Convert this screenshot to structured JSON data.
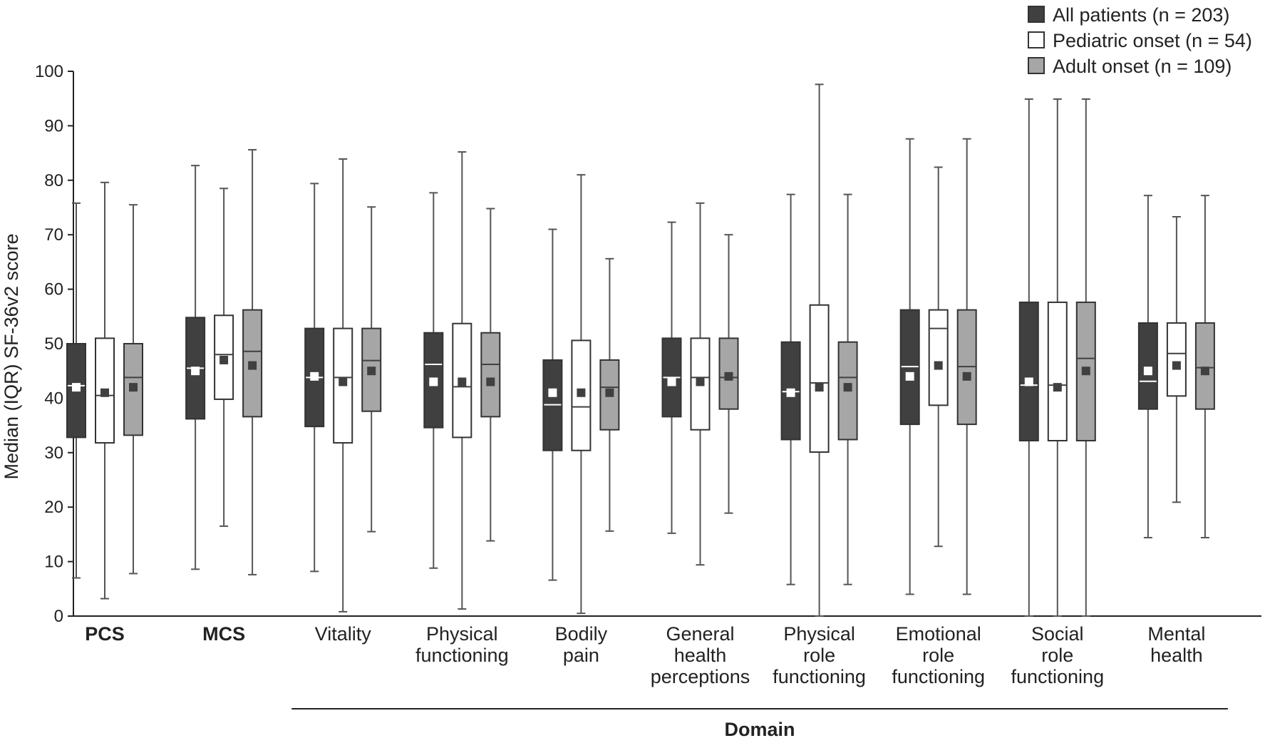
{
  "chart_data": {
    "type": "boxplot",
    "ylabel": "Median (IQR) SF-36v2 score",
    "xlabel": "Domain",
    "ylim": [
      0,
      100
    ],
    "yticks": [
      0,
      10,
      20,
      30,
      40,
      50,
      60,
      70,
      80,
      90,
      100
    ],
    "legend_position": "top-right",
    "grid": false,
    "series": [
      {
        "name": "All patients (n = 203)",
        "color": "#404040",
        "median_color": "#ffffff",
        "mean_color": "#ffffff"
      },
      {
        "name": "Pediatric onset (n = 54)",
        "color": "#ffffff",
        "median_color": "#404040",
        "mean_color": "#404040"
      },
      {
        "name": "Adult onset (n = 109)",
        "color": "#a6a6a6",
        "median_color": "#404040",
        "mean_color": "#404040"
      }
    ],
    "categories": [
      {
        "label": [
          "PCS"
        ],
        "bold": true,
        "domain": false,
        "boxes": [
          {
            "min": 7,
            "q1": 32.8,
            "median": 42.3,
            "q3": 50,
            "max": 75.8,
            "mean": 42
          },
          {
            "min": 3.2,
            "q1": 31.8,
            "median": 40.5,
            "q3": 51,
            "max": 79.6,
            "mean": 41
          },
          {
            "min": 7.8,
            "q1": 33.2,
            "median": 43.8,
            "q3": 50,
            "max": 75.5,
            "mean": 42
          }
        ]
      },
      {
        "label": [
          "MCS"
        ],
        "bold": true,
        "domain": false,
        "boxes": [
          {
            "min": 8.6,
            "q1": 36.2,
            "median": 45.5,
            "q3": 54.8,
            "max": 82.7,
            "mean": 45
          },
          {
            "min": 16.5,
            "q1": 39.8,
            "median": 48,
            "q3": 55.2,
            "max": 78.5,
            "mean": 47
          },
          {
            "min": 7.6,
            "q1": 36.6,
            "median": 48.6,
            "q3": 56.2,
            "max": 85.6,
            "mean": 46
          }
        ]
      },
      {
        "label": [
          "Vitality"
        ],
        "bold": false,
        "domain": true,
        "boxes": [
          {
            "min": 8.2,
            "q1": 34.8,
            "median": 43.8,
            "q3": 52.8,
            "max": 79.4,
            "mean": 44
          },
          {
            "min": 0.8,
            "q1": 31.8,
            "median": 43.8,
            "q3": 52.8,
            "max": 83.9,
            "mean": 43
          },
          {
            "min": 15.5,
            "q1": 37.6,
            "median": 46.9,
            "q3": 52.8,
            "max": 75.1,
            "mean": 45
          }
        ]
      },
      {
        "label": [
          "Physical",
          "functioning"
        ],
        "bold": false,
        "domain": true,
        "boxes": [
          {
            "min": 8.8,
            "q1": 34.6,
            "median": 46.2,
            "q3": 52,
            "max": 77.7,
            "mean": 43
          },
          {
            "min": 1.3,
            "q1": 32.8,
            "median": 42.1,
            "q3": 53.7,
            "max": 85.2,
            "mean": 43
          },
          {
            "min": 13.8,
            "q1": 36.6,
            "median": 46.2,
            "q3": 52,
            "max": 74.8,
            "mean": 43
          }
        ]
      },
      {
        "label": [
          "Bodily",
          "pain"
        ],
        "bold": false,
        "domain": true,
        "boxes": [
          {
            "min": 6.6,
            "q1": 30.4,
            "median": 38.8,
            "q3": 47,
            "max": 71,
            "mean": 41
          },
          {
            "min": 0.5,
            "q1": 30.4,
            "median": 38.4,
            "q3": 50.6,
            "max": 81,
            "mean": 41
          },
          {
            "min": 15.6,
            "q1": 34.2,
            "median": 42,
            "q3": 47,
            "max": 65.6,
            "mean": 41
          }
        ]
      },
      {
        "label": [
          "General",
          "health",
          "perceptions"
        ],
        "bold": false,
        "domain": true,
        "boxes": [
          {
            "min": 15.2,
            "q1": 36.6,
            "median": 43.8,
            "q3": 51,
            "max": 72.3,
            "mean": 43
          },
          {
            "min": 9.4,
            "q1": 34.2,
            "median": 43.8,
            "q3": 51,
            "max": 75.8,
            "mean": 43
          },
          {
            "min": 18.9,
            "q1": 38,
            "median": 43.8,
            "q3": 51,
            "max": 70,
            "mean": 44
          }
        ]
      },
      {
        "label": [
          "Physical",
          "role",
          "functioning"
        ],
        "bold": false,
        "domain": true,
        "boxes": [
          {
            "min": 5.8,
            "q1": 32.4,
            "median": 41.2,
            "q3": 50.3,
            "max": 77.4,
            "mean": 41
          },
          {
            "min": 0,
            "q1": 30.1,
            "median": 42.8,
            "q3": 57.1,
            "max": 97.6,
            "mean": 42
          },
          {
            "min": 5.8,
            "q1": 32.4,
            "median": 43.8,
            "q3": 50.3,
            "max": 77.4,
            "mean": 42
          }
        ]
      },
      {
        "label": [
          "Emotional",
          "role",
          "functioning"
        ],
        "bold": false,
        "domain": true,
        "boxes": [
          {
            "min": 4,
            "q1": 35.2,
            "median": 45.8,
            "q3": 56.2,
            "max": 87.6,
            "mean": 44
          },
          {
            "min": 12.8,
            "q1": 38.7,
            "median": 52.8,
            "q3": 56.2,
            "max": 82.4,
            "mean": 46
          },
          {
            "min": 4,
            "q1": 35.2,
            "median": 45.8,
            "q3": 56.2,
            "max": 87.6,
            "mean": 44
          }
        ]
      },
      {
        "label": [
          "Social",
          "role",
          "functioning"
        ],
        "bold": false,
        "domain": true,
        "boxes": [
          {
            "min": 0,
            "q1": 32.2,
            "median": 42.4,
            "q3": 57.6,
            "max": 94.9,
            "mean": 43
          },
          {
            "min": 0,
            "q1": 32.2,
            "median": 42.4,
            "q3": 57.6,
            "max": 94.9,
            "mean": 42
          },
          {
            "min": 0,
            "q1": 32.2,
            "median": 47.3,
            "q3": 57.6,
            "max": 94.9,
            "mean": 45
          }
        ]
      },
      {
        "label": [
          "Mental",
          "health"
        ],
        "bold": false,
        "domain": true,
        "boxes": [
          {
            "min": 14.4,
            "q1": 38,
            "median": 43.1,
            "q3": 53.8,
            "max": 77.2,
            "mean": 45
          },
          {
            "min": 20.9,
            "q1": 40.4,
            "median": 48.2,
            "q3": 53.8,
            "max": 73.3,
            "mean": 46
          },
          {
            "min": 14.4,
            "q1": 38,
            "median": 45.6,
            "q3": 53.8,
            "max": 77.2,
            "mean": 45
          }
        ]
      }
    ]
  }
}
